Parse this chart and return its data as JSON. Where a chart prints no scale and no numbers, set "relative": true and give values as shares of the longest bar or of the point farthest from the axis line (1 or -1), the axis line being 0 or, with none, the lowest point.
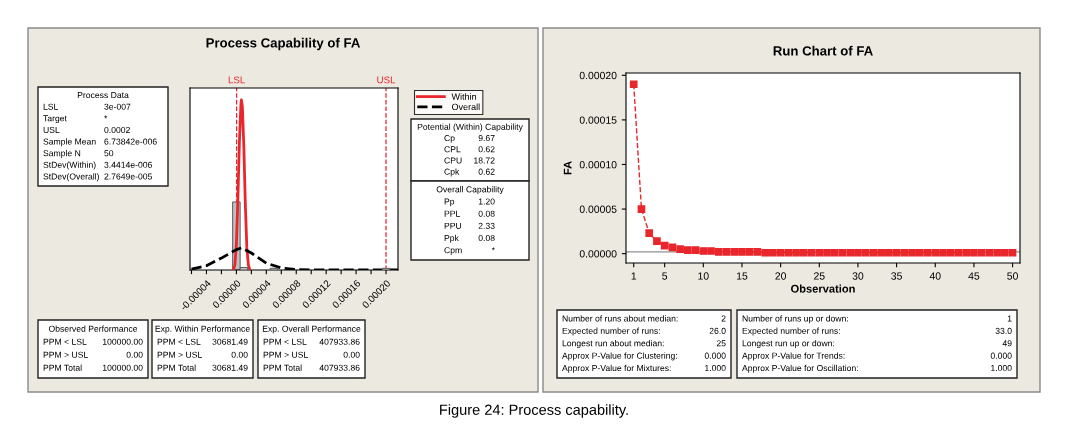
{
  "chart_data": [
    {
      "type": "histogram",
      "title": "Process Capability of FA",
      "relative": true,
      "tick_labels": "x",
      "legend": "right",
      "grid": false,
      "color": "#c0c0c0",
      "bins": [
        -5e-06,
        5e-06,
        1.5e-05,
        2.5e-05,
        3.5e-05,
        4.5e-05,
        5.5e-05,
        6.5e-05,
        7.5e-05,
        8.5e-05,
        9.5e-05,
        0.000105,
        0.000115,
        0.000125,
        0.000135,
        0.000145,
        0.000155,
        0.000165,
        0.000175,
        0.000185,
        0.000195,
        0.000205
      ],
      "values": [
        0.4,
        0.015,
        0,
        0,
        0,
        0.01,
        0,
        0,
        0,
        0,
        0,
        0,
        0,
        0,
        0,
        0,
        0,
        0,
        0,
        0,
        0.01
      ],
      "xlim": [
        -6.2e-05,
        0.000216
      ],
      "xticks": [
        {
          "value": -6e-05,
          "label": null
        },
        {
          "value": -4e-05,
          "label": "-0.00004"
        },
        {
          "value": -2e-05,
          "label": null
        },
        {
          "value": 0,
          "label": "0.00000"
        },
        {
          "value": 2e-05,
          "label": null
        },
        {
          "value": 4e-05,
          "label": "0.00004"
        },
        {
          "value": 6e-05,
          "label": null
        },
        {
          "value": 8e-05,
          "label": "0.00008"
        },
        {
          "value": 0.0001,
          "label": null
        },
        {
          "value": 0.00012,
          "label": "0.00012"
        },
        {
          "value": 0.00014,
          "label": null
        },
        {
          "value": 0.00016,
          "label": "0.00016"
        },
        {
          "value": 0.00018,
          "label": null
        },
        {
          "value": 0.0002,
          "label": "0.00020"
        }
      ],
      "ref_lines": [
        {
          "axis": "x",
          "value": 3e-07,
          "label": "LSL",
          "color": "#e8262b",
          "line_style": "dashed"
        },
        {
          "axis": "x",
          "value": 0.0002,
          "label": "USL",
          "color": "#e8262b",
          "line_style": "dashed"
        }
      ],
      "series": [
        {
          "name": "Within",
          "type": "line",
          "color": "#e8262b",
          "line_style": "solid",
          "x": [
            -4e-06,
            -2e-06,
            0,
            2e-06,
            4e-06,
            6e-06,
            6.7e-06,
            8e-06,
            1e-05,
            1.2e-05,
            1.4e-05,
            1.6e-05,
            1.8e-05
          ],
          "values": [
            0,
            0.03,
            0.15,
            0.42,
            0.75,
            0.97,
            1.0,
            0.96,
            0.72,
            0.38,
            0.13,
            0.03,
            0
          ]
        },
        {
          "name": "Overall",
          "type": "line",
          "color": "#000000",
          "line_style": "dashed",
          "x": [
            -6e-05,
            -4e-05,
            -2e-05,
            0,
            6.7e-06,
            2e-05,
            4e-05,
            6e-05,
            8e-05,
            0.0001,
            0.000216
          ],
          "values": [
            0.005,
            0.025,
            0.07,
            0.12,
            0.13,
            0.1,
            0.04,
            0.012,
            0.002,
            0,
            0
          ]
        }
      ]
    },
    {
      "type": "other",
      "title": "Process Data",
      "annotations": [
        "LSL\t3e-007",
        "Target\t*",
        "USL\t0.0002",
        "Sample Mean\t6.73842e-006",
        "Sample N\t50",
        "StDev(Within)\t3.4414e-006",
        "StDev(Overall)\t2.7649e-005"
      ]
    },
    {
      "type": "other",
      "title": "Potential (Within) Capability",
      "annotations": [
        "Cp\t9.67",
        "CPL\t0.62",
        "CPU\t18.72",
        "Cpk\t0.62"
      ]
    },
    {
      "type": "other",
      "title": "Overall Capability",
      "annotations": [
        "Pp\t1.20",
        "PPL\t0.08",
        "PPU\t2.33",
        "Ppk\t0.08",
        "Cpm\t*"
      ]
    },
    {
      "type": "other",
      "title": "Observed Performance",
      "annotations": [
        "PPM < LSL\t100000.00",
        "PPM > USL\t0.00",
        "PPM Total\t100000.00"
      ]
    },
    {
      "type": "other",
      "title": "Exp. Within Performance",
      "annotations": [
        "PPM < LSL\t30681.49",
        "PPM > USL\t0.00",
        "PPM Total\t30681.49"
      ]
    },
    {
      "type": "other",
      "title": "Exp. Overall Performance",
      "annotations": [
        "PPM < LSL\t407933.86",
        "PPM > USL\t0.00",
        "PPM Total\t407933.86"
      ]
    },
    {
      "type": "line",
      "title": "Run Chart of FA",
      "xlabel": "Observation",
      "ylabel": "FA",
      "marker": "square",
      "line_style": "dashed",
      "grid": false,
      "x": [
        1,
        2,
        3,
        4,
        5,
        6,
        7,
        8,
        9,
        10,
        11,
        12,
        13,
        14,
        15,
        16,
        17,
        18,
        19,
        20,
        21,
        22,
        23,
        24,
        25,
        26,
        27,
        28,
        29,
        30,
        31,
        32,
        33,
        34,
        35,
        36,
        37,
        38,
        39,
        40,
        41,
        42,
        43,
        44,
        45,
        46,
        47,
        48,
        49,
        50
      ],
      "xlim": [
        0,
        50.96
      ],
      "xticks": [
        1,
        5,
        10,
        15,
        20,
        25,
        30,
        35,
        40,
        45,
        50
      ],
      "ylim": [
        -1.05e-05,
        0.0002026
      ],
      "yticks": [
        {
          "value": 0,
          "label": "0.00000"
        },
        {
          "value": 5e-05,
          "label": "0.00005"
        },
        {
          "value": 0.0001,
          "label": "0.00010"
        },
        {
          "value": 0.00015,
          "label": "0.00015"
        },
        {
          "value": 0.0002,
          "label": "0.00020"
        }
      ],
      "ref_lines": [
        {
          "axis": "y",
          "value": 2e-06,
          "color": "#909090",
          "line_style": "solid"
        }
      ],
      "series": [
        {
          "color": "#e8262b",
          "values": [
            0.00019,
            5e-05,
            2.3e-05,
            1.4e-05,
            9e-06,
            7e-06,
            5e-06,
            4e-06,
            4e-06,
            3e-06,
            3e-06,
            2e-06,
            2e-06,
            2e-06,
            2e-06,
            2e-06,
            2e-06,
            1e-06,
            1e-06,
            1e-06,
            1e-06,
            1e-06,
            1e-06,
            1e-06,
            1e-06,
            1e-06,
            1e-06,
            1e-06,
            1e-06,
            1e-06,
            1e-06,
            1e-06,
            1e-06,
            1e-06,
            1e-06,
            1e-06,
            1e-06,
            1e-06,
            1e-06,
            1e-06,
            1e-06,
            1e-06,
            1e-06,
            1e-06,
            1e-06,
            1e-06,
            1e-06,
            1e-06,
            1e-06,
            1e-06
          ]
        }
      ]
    },
    {
      "type": "other",
      "annotations": [
        "Number of runs about median:\t2",
        "Expected number of runs:\t26.0",
        "Longest run about median:\t25",
        "Approx P-Value for Clustering:\t0.000",
        "Approx P-Value for Mixtures:\t1.000"
      ]
    },
    {
      "type": "other",
      "annotations": [
        "Number of runs up or down:\t1",
        "Expected number of runs:\t33.0",
        "Longest run up or down:\t49",
        "Approx P-Value for Trends:\t0.000",
        "Approx P-Value for Oscillation:\t1.000"
      ]
    },
    {
      "type": "other",
      "annotations": [
        "Figure 24: Process capability."
      ]
    }
  ]
}
